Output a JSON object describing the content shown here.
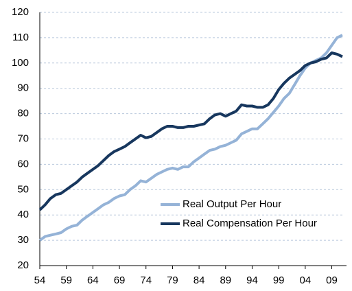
{
  "chart_data": {
    "type": "line",
    "categories": [
      "54",
      null,
      null,
      null,
      null,
      "59",
      null,
      null,
      null,
      null,
      "64",
      null,
      null,
      null,
      null,
      "69",
      null,
      null,
      null,
      null,
      "74",
      null,
      null,
      null,
      null,
      "79",
      null,
      null,
      null,
      null,
      "84",
      null,
      null,
      null,
      null,
      "89",
      null,
      null,
      null,
      null,
      "94",
      null,
      null,
      null,
      null,
      "99",
      null,
      null,
      null,
      null,
      "04",
      null,
      null,
      null,
      null,
      "09",
      null,
      null
    ],
    "series": [
      {
        "name": "Real Output Per Hour",
        "color": "#95b3d7",
        "values": [
          30,
          31.5,
          32,
          32.5,
          33,
          34.5,
          35.5,
          36,
          38,
          39.5,
          41,
          42.5,
          44,
          45,
          46.5,
          47.5,
          48,
          50,
          51.5,
          53.5,
          53,
          54.5,
          56,
          57,
          58,
          58.5,
          58,
          59,
          59,
          61,
          62.5,
          64,
          65.5,
          66,
          67,
          67.5,
          68.5,
          69.5,
          72,
          73,
          74,
          74,
          76,
          78,
          80.5,
          83,
          86,
          88,
          91.5,
          95,
          98,
          100,
          101,
          102,
          104,
          107,
          110,
          111
        ]
      },
      {
        "name": "Real Compensation Per Hour",
        "color": "#17375e",
        "values": [
          42,
          44,
          46.5,
          48,
          48.5,
          50,
          51.5,
          53,
          55,
          56.5,
          58,
          59.5,
          61.5,
          63.5,
          65,
          66,
          67,
          68.5,
          70,
          71.5,
          70.5,
          71,
          72.5,
          74,
          75,
          75,
          74.5,
          74.5,
          75,
          75,
          75.5,
          76,
          78,
          79.5,
          80,
          79,
          80,
          81,
          83.5,
          83,
          83,
          82.5,
          82.5,
          83.5,
          86,
          89.5,
          92,
          94,
          95.5,
          97,
          99,
          100,
          100.5,
          101.5,
          102,
          104,
          103.5,
          102.5
        ]
      }
    ],
    "ylim": [
      20,
      120
    ],
    "yticks": [
      20,
      30,
      40,
      50,
      60,
      70,
      80,
      90,
      100,
      110,
      120
    ],
    "grid": true,
    "legend": "lower right"
  }
}
